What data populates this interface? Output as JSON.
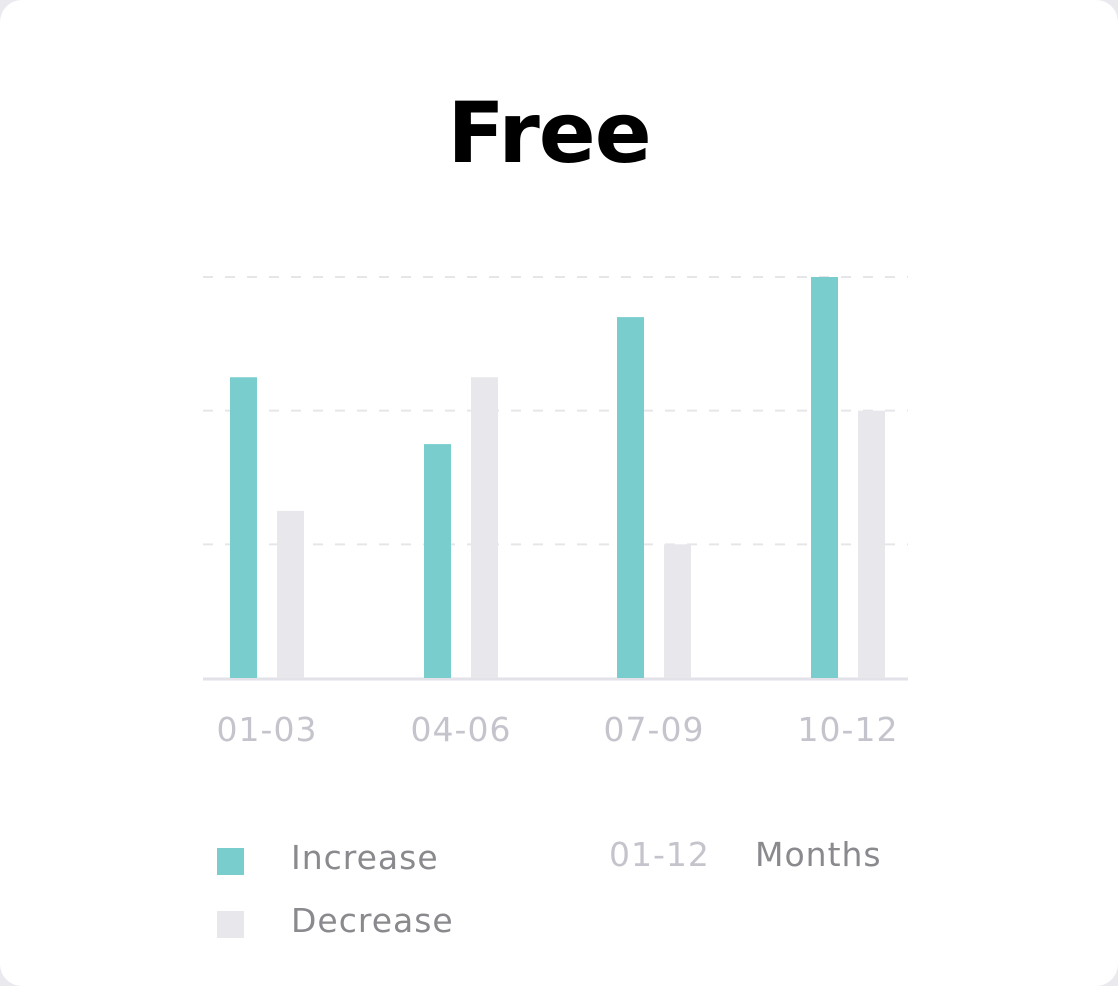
{
  "card": {
    "title": "Free"
  },
  "chart_data": {
    "type": "bar",
    "title": "Free",
    "categories": [
      "01-03",
      "04-06",
      "07-09",
      "10-12"
    ],
    "series": [
      {
        "name": "Increase",
        "values": [
          2.25,
          1.75,
          2.7,
          3.0
        ],
        "color": "#7acdcd"
      },
      {
        "name": "Decrease",
        "values": [
          1.25,
          2.25,
          1.0,
          2.0
        ],
        "color": "#e7e7ec"
      }
    ],
    "ylim": [
      0,
      3
    ],
    "grid": true,
    "y_ticks_shown": false,
    "legend_position": "bottom-left"
  },
  "footer": {
    "range_text": "01-12",
    "unit_text": "Months"
  }
}
